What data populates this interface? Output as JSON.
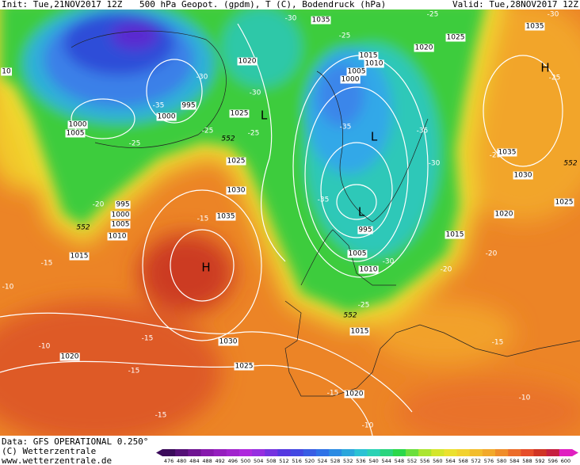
{
  "header": {
    "init": "Init: Tue,21NOV2017 12Z",
    "title": "500 hPa Geopot. (gpdm), T (C), Bodendruck (hPa)",
    "valid": "Valid: Tue,28NOV2017 12Z"
  },
  "map": {
    "pressure_labels": [
      1035,
      1025,
      1035,
      1020,
      1015,
      1010,
      1005,
      1000,
      1020,
      995,
      1000,
      1025,
      1000,
      1005,
      1025,
      1035,
      1030,
      1030,
      995,
      1000,
      1005,
      1035,
      1010,
      1020,
      1025,
      995,
      1015,
      1015,
      1005,
      1010,
      1015,
      1030,
      1020,
      1025,
      1020,
      10
    ],
    "temperature_labels": [
      -30,
      -25,
      -25,
      -30,
      -30,
      -30,
      -35,
      -25,
      -25,
      -25,
      -35,
      -35,
      -30,
      -25,
      -25,
      -35,
      -20,
      -15,
      -30,
      -20,
      -20,
      -15,
      -10,
      -25,
      -15,
      -10,
      -15,
      -15,
      -10,
      -15,
      -10,
      -15
    ],
    "geopotential_labels": [
      552,
      552,
      552,
      552
    ],
    "centers": [
      "H",
      "L",
      "L",
      "L",
      "H"
    ]
  },
  "footer": {
    "data": "Data: GFS OPERATIONAL 0.250°",
    "copyright": "(C) Wetterzentrale",
    "url": "www.wetterzentrale.de"
  },
  "colorbar": {
    "ticks": [
      476,
      480,
      484,
      488,
      492,
      496,
      500,
      504,
      508,
      512,
      516,
      520,
      524,
      528,
      532,
      536,
      540,
      544,
      548,
      552,
      556,
      560,
      564,
      568,
      572,
      576,
      580,
      584,
      588,
      592,
      596,
      600
    ]
  }
}
